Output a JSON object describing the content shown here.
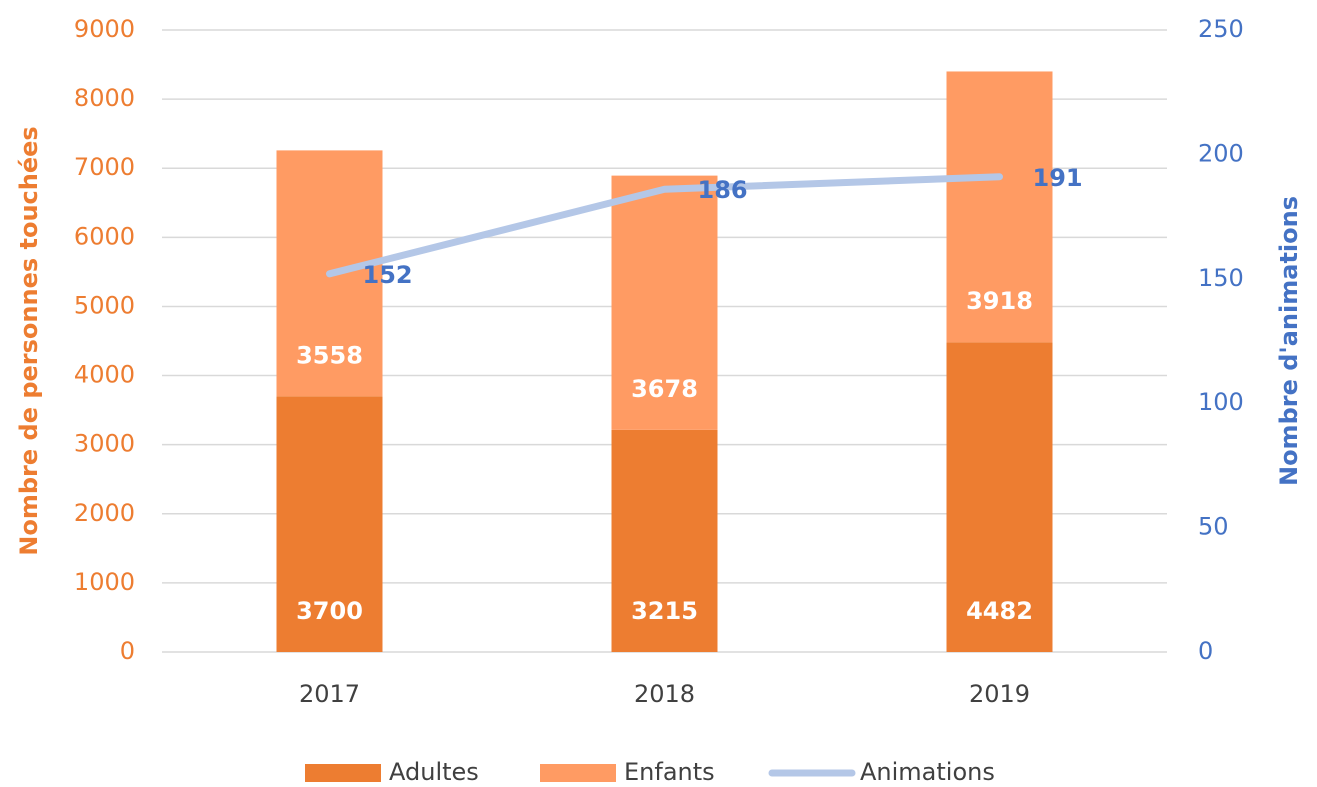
{
  "chart_data": {
    "type": "bar",
    "stacked": true,
    "categories": [
      "2017",
      "2018",
      "2019"
    ],
    "series": [
      {
        "name": "Adultes",
        "color": "#ed7d31",
        "values": [
          3700,
          3215,
          4482
        ]
      },
      {
        "name": "Enfants",
        "color": "#ff9b63",
        "values": [
          3558,
          3678,
          3918
        ]
      },
      {
        "name": "Animations",
        "type": "line",
        "axis": "y2",
        "color": "#b4c7e7",
        "values": [
          152,
          186,
          191
        ]
      }
    ],
    "ylabel": "Nombre de personnes touchées",
    "y2label": "Nombre d'animations",
    "ylim": [
      0,
      9000
    ],
    "yticks": [
      0,
      1000,
      2000,
      3000,
      4000,
      5000,
      6000,
      7000,
      8000,
      9000
    ],
    "y2lim": [
      0,
      250
    ],
    "y2ticks": [
      0,
      50,
      100,
      150,
      200,
      250
    ],
    "grid": true,
    "legend": "bottom"
  }
}
